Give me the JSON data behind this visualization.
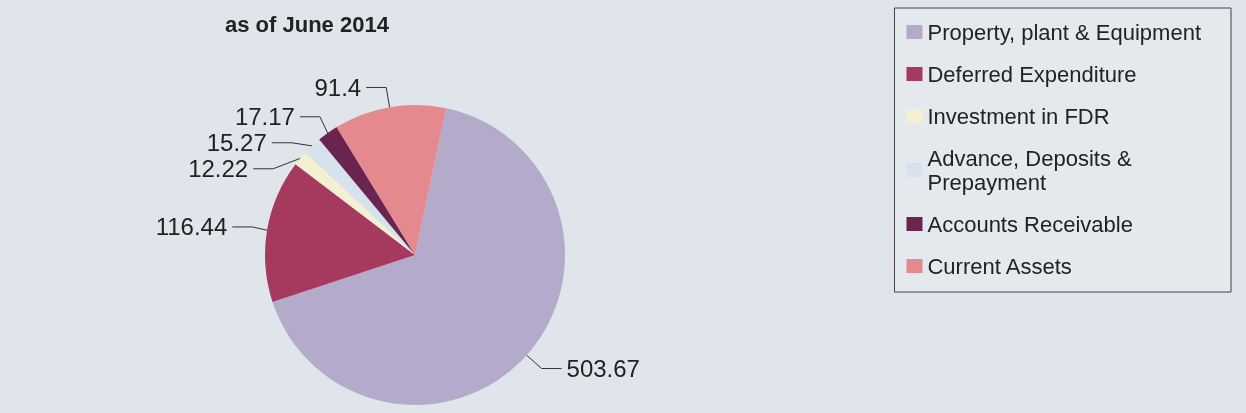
{
  "chart_data": {
    "type": "pie",
    "title": "as of June 2014",
    "categories": [
      "Property, plant & Equipment",
      "Deferred Expenditure",
      "Investment in FDR",
      "Advance, Deposits &\nPrepayment",
      "Accounts Receivable",
      "Current Assets"
    ],
    "values": [
      503.67,
      116.44,
      12.22,
      15.27,
      17.17,
      91.4
    ],
    "colors": [
      "#b4abcb",
      "#a63a5e",
      "#f3f1d2",
      "#d6e3ec",
      "#6b2450",
      "#e4898d"
    ],
    "data_labels": true,
    "legend": "right"
  }
}
